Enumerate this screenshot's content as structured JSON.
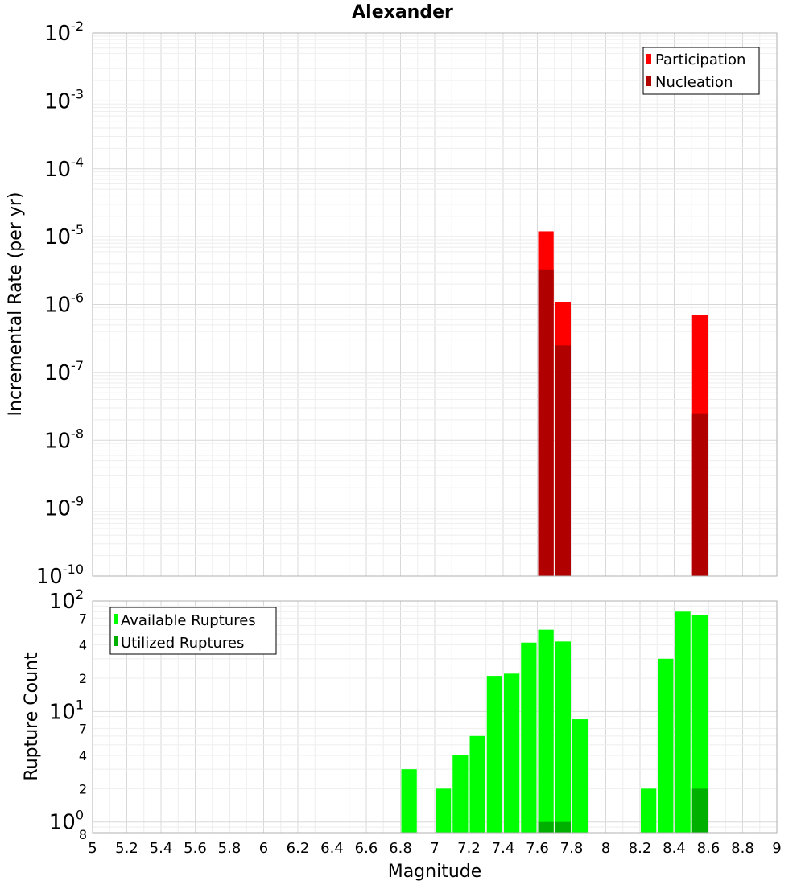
{
  "chart_data": [
    {
      "type": "bar",
      "title": "Alexander",
      "ylabel": "Incremental Rate (per yr)",
      "xlabel": "",
      "yscale": "log",
      "ylim": [
        1e-10,
        0.01
      ],
      "xlim": [
        5,
        9
      ],
      "bin_width": 0.1,
      "y_ticks": [
        {
          "base": "10",
          "exp": "-10"
        },
        {
          "base": "10",
          "exp": "-9"
        },
        {
          "base": "10",
          "exp": "-8"
        },
        {
          "base": "10",
          "exp": "-7"
        },
        {
          "base": "10",
          "exp": "-6"
        },
        {
          "base": "10",
          "exp": "-5"
        },
        {
          "base": "10",
          "exp": "-4"
        },
        {
          "base": "10",
          "exp": "-3"
        },
        {
          "base": "10",
          "exp": "-2"
        }
      ],
      "legend": {
        "position": "top-right"
      },
      "series": [
        {
          "name": "Participation",
          "color": "#ff0000",
          "x": [
            7.65,
            7.75,
            8.55
          ],
          "values": [
            1.2e-05,
            1.1e-06,
            7e-07
          ]
        },
        {
          "name": "Nucleation",
          "color": "#b00000",
          "x": [
            7.65,
            7.75,
            8.55
          ],
          "values": [
            3.3e-06,
            2.5e-07,
            2.5e-08
          ]
        }
      ]
    },
    {
      "type": "bar",
      "title": "",
      "ylabel": "Rupture Count",
      "xlabel": "Magnitude",
      "yscale": "log",
      "ylim": [
        0.8,
        100
      ],
      "xlim": [
        5,
        9
      ],
      "bin_width": 0.1,
      "x_ticks": [
        "5",
        "5.2",
        "5.4",
        "5.6",
        "5.8",
        "6",
        "6.2",
        "6.4",
        "6.6",
        "6.8",
        "7",
        "7.2",
        "7.4",
        "7.6",
        "7.8",
        "8",
        "8.2",
        "8.4",
        "8.6",
        "8.8",
        "9"
      ],
      "y_major_ticks": [
        {
          "base": "10",
          "exp": "0"
        },
        {
          "base": "10",
          "exp": "1"
        },
        {
          "base": "10",
          "exp": "2"
        }
      ],
      "y_minor_ticks": [
        {
          "value": 2,
          "label": "2"
        },
        {
          "value": 4,
          "label": "4"
        },
        {
          "value": 7,
          "label": "7"
        },
        {
          "value": 20,
          "label": "2"
        },
        {
          "value": 40,
          "label": "4"
        },
        {
          "value": 70,
          "label": "7"
        }
      ],
      "y_corner_label": "8",
      "legend": {
        "position": "top-left"
      },
      "series": [
        {
          "name": "Available Ruptures",
          "color": "#00ff00",
          "x": [
            6.85,
            7.05,
            7.15,
            7.25,
            7.35,
            7.45,
            7.55,
            7.65,
            7.75,
            7.85,
            8.25,
            8.35,
            8.45,
            8.55
          ],
          "values": [
            3,
            2,
            4,
            6,
            21,
            22,
            42,
            55,
            43,
            8.5,
            2,
            30,
            80,
            75
          ]
        },
        {
          "name": "Utilized Ruptures",
          "color": "#00b000",
          "x": [
            7.65,
            7.75,
            8.55
          ],
          "values": [
            1,
            1,
            2
          ]
        }
      ]
    }
  ]
}
